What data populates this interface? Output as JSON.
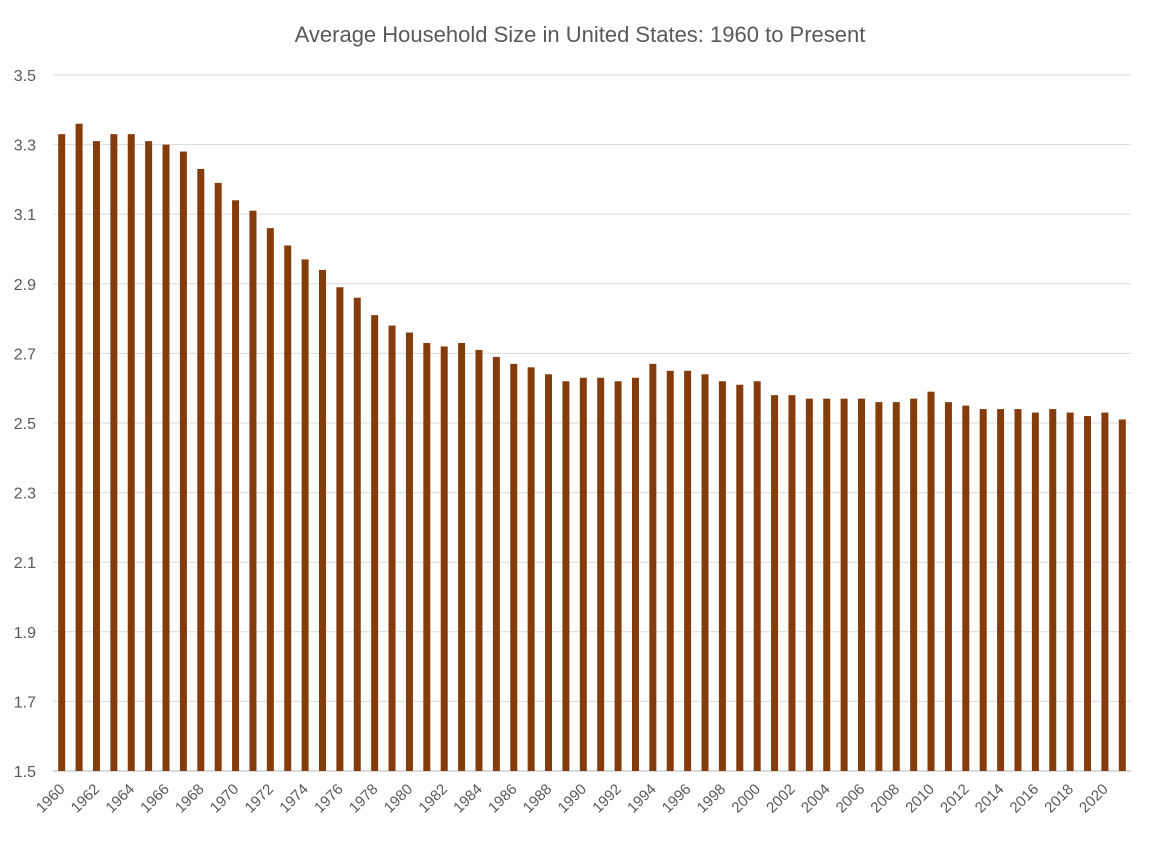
{
  "chart_data": {
    "type": "bar",
    "title": "Average Household Size in United States:  1960 to Present",
    "xlabel": "",
    "ylabel": "",
    "ylim": [
      1.5,
      3.5
    ],
    "yticks": [
      "1.5",
      "1.7",
      "1.9",
      "2.1",
      "2.3",
      "2.5",
      "2.7",
      "2.9",
      "3.1",
      "3.3",
      "3.5"
    ],
    "grid": true,
    "bar_color": "#843C0C",
    "categories": [
      1960,
      1961,
      1962,
      1963,
      1964,
      1965,
      1966,
      1967,
      1968,
      1969,
      1970,
      1971,
      1972,
      1973,
      1974,
      1975,
      1976,
      1977,
      1978,
      1979,
      1980,
      1981,
      1982,
      1983,
      1984,
      1985,
      1986,
      1987,
      1988,
      1989,
      1990,
      1991,
      1992,
      1993,
      1994,
      1995,
      1996,
      1997,
      1998,
      1999,
      2000,
      2001,
      2002,
      2003,
      2004,
      2005,
      2006,
      2007,
      2008,
      2009,
      2010,
      2011,
      2012,
      2013,
      2014,
      2015,
      2016,
      2017,
      2018,
      2019,
      2020,
      2021
    ],
    "values": [
      3.33,
      3.36,
      3.31,
      3.33,
      3.33,
      3.31,
      3.3,
      3.28,
      3.23,
      3.19,
      3.14,
      3.11,
      3.06,
      3.01,
      2.97,
      2.94,
      2.89,
      2.86,
      2.81,
      2.78,
      2.76,
      2.73,
      2.72,
      2.73,
      2.71,
      2.69,
      2.67,
      2.66,
      2.64,
      2.62,
      2.63,
      2.63,
      2.62,
      2.63,
      2.67,
      2.65,
      2.65,
      2.64,
      2.62,
      2.61,
      2.62,
      2.58,
      2.58,
      2.57,
      2.57,
      2.57,
      2.57,
      2.56,
      2.56,
      2.57,
      2.59,
      2.56,
      2.55,
      2.54,
      2.54,
      2.54,
      2.53,
      2.54,
      2.53,
      2.52,
      2.53,
      2.51
    ],
    "xtick_labels": [
      "1960",
      "1962",
      "1964",
      "1966",
      "1968",
      "1970",
      "1972",
      "1974",
      "1976",
      "1978",
      "1980",
      "1982",
      "1984",
      "1986",
      "1988",
      "1990",
      "1992",
      "1994",
      "1996",
      "1998",
      "2000",
      "2002",
      "2004",
      "2006",
      "2008",
      "2010",
      "2012",
      "2014",
      "2016",
      "2018",
      "2020"
    ]
  }
}
